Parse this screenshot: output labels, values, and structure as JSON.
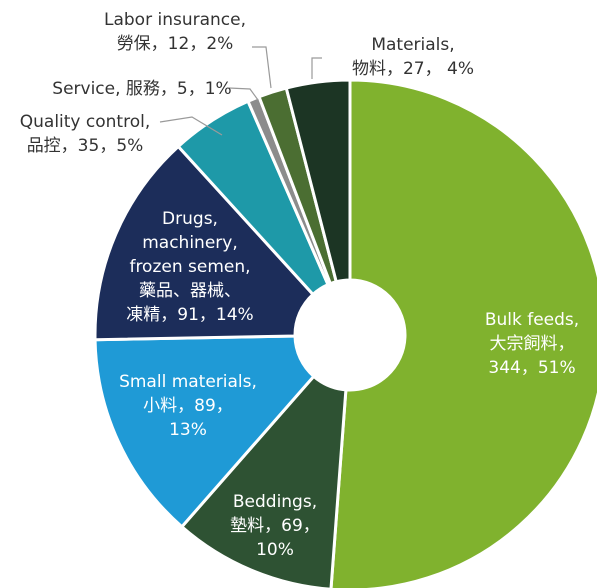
{
  "chart_data": {
    "type": "pie",
    "donut": true,
    "title": "",
    "unit": "",
    "slices": [
      {
        "category": "Bulk feeds",
        "category_zh": "大宗飼料",
        "value": 344,
        "percent": "51%",
        "color": "#80b22e",
        "label_lines": [
          "Bulk feeds,",
          "大宗飼料，",
          "344，51%"
        ]
      },
      {
        "category": "Beddings",
        "category_zh": "墊料",
        "value": 69,
        "percent": "10%",
        "color": "#2e5233",
        "label_lines": [
          "Beddings,",
          "墊料，69，",
          "10%"
        ]
      },
      {
        "category": "Small materials",
        "category_zh": "小料",
        "value": 89,
        "percent": "13%",
        "color": "#1f9ad6",
        "label_lines": [
          "Small materials,",
          "小料，89，",
          "13%"
        ]
      },
      {
        "category": "Drugs, machinery, frozen semen",
        "category_zh": "藥品、器械、凍精",
        "value": 91,
        "percent": "14%",
        "color": "#1c2d5a",
        "label_lines": [
          "Drugs,",
          "machinery,",
          "frozen semen,",
          "藥品、器械、",
          "凍精，91，14%"
        ]
      },
      {
        "category": "Quality control",
        "category_zh": "品控",
        "value": 35,
        "percent": "5%",
        "color": "#1e99a8",
        "label_lines": [
          "Quality control,",
          "品控，35，5%"
        ]
      },
      {
        "category": "Service",
        "category_zh": "服務",
        "value": 5,
        "percent": "1%",
        "color": "#8c8c8c",
        "label_lines": [
          "Service, 服務，5，1%"
        ]
      },
      {
        "category": "Labor insurance",
        "category_zh": "勞保",
        "value": 12,
        "percent": "2%",
        "color": "#4b6e32",
        "label_lines": [
          "Labor insurance,",
          "勞保，12，2%"
        ]
      },
      {
        "category": "Materials",
        "category_zh": "物料",
        "value": 27,
        "percent": "4%",
        "color": "#1c3524",
        "label_lines": [
          "Materials,",
          "物料，27， 4%"
        ]
      }
    ],
    "legend": "none",
    "data_labels": "on slices and outside with leader lines"
  }
}
